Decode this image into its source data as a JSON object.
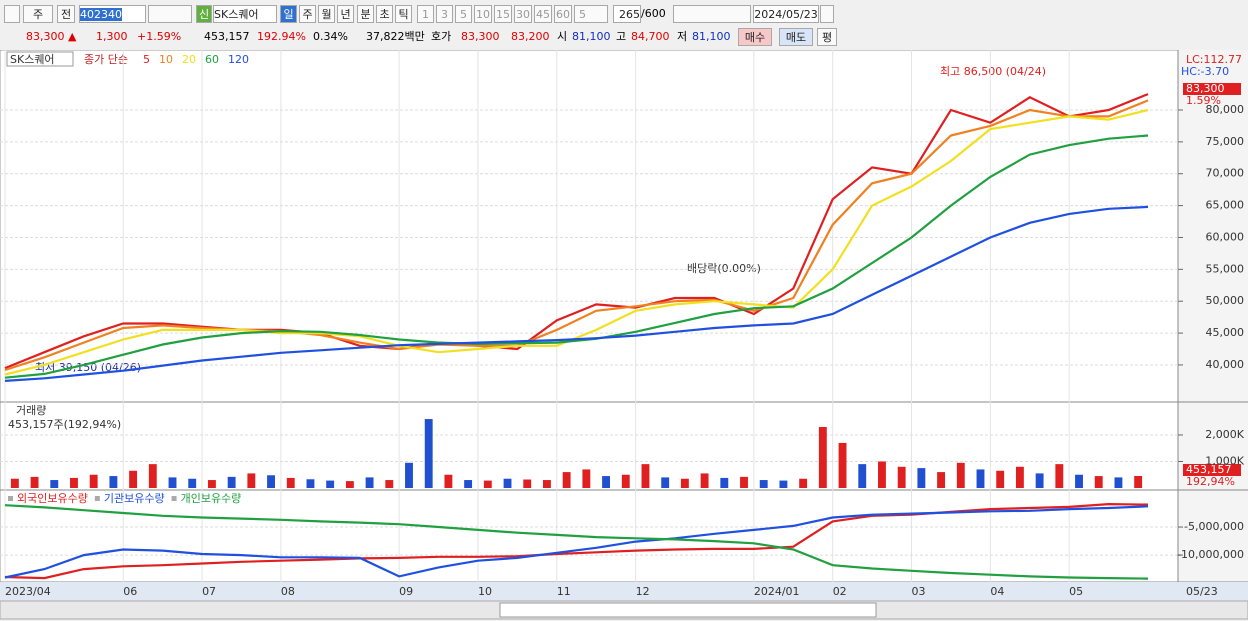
{
  "toolbar": {
    "period_type": "주",
    "compare": "전",
    "code": "402340",
    "new_badge": "신",
    "name": "SK스퀘어",
    "intervals": [
      "일",
      "주",
      "월",
      "년",
      "분",
      "초",
      "틱"
    ],
    "units": [
      "1",
      "3",
      "5",
      "10",
      "15",
      "30",
      "45",
      "60"
    ],
    "unit_select": "5",
    "count": "265",
    "count_max": "/600",
    "date": "2024/05/23"
  },
  "quote_bar": {
    "price": "83,300 ▲",
    "change": "1,300",
    "change_rate": "+1.59%",
    "volume": "453,157",
    "volume_rate": "192.94%",
    "turnover": "0.34%",
    "amount": "37,822백만",
    "ask_label": "호가",
    "ask": "83,300",
    "bid": "83,200",
    "open_label": "시",
    "open": "81,100",
    "high_label": "고",
    "high": "84,700",
    "low_label": "저",
    "low": "81,100",
    "buy": "매수",
    "sell": "매도",
    "avg": "평"
  },
  "chart_data": [
    {
      "type": "line",
      "name_label": "SK스퀘어",
      "legend_prefix": "종가 단순",
      "series": [
        {
          "name": "5",
          "color": "#e02020",
          "values": [
            39500,
            42000,
            44500,
            46500,
            46500,
            46000,
            45500,
            45500,
            45000,
            43000,
            42500,
            43500,
            43000,
            42500,
            47000,
            49500,
            49000,
            50500,
            50500,
            48000,
            52000,
            66000,
            71000,
            70000,
            80000,
            78000,
            82000,
            79000,
            80000,
            82500
          ]
        },
        {
          "name": "10",
          "color": "#f08020",
          "values": [
            39200,
            41200,
            43500,
            45800,
            46200,
            45800,
            45500,
            45300,
            44700,
            43500,
            42500,
            43200,
            43000,
            43000,
            45500,
            48500,
            49200,
            50000,
            50200,
            48500,
            50500,
            62000,
            68500,
            70000,
            76000,
            77500,
            80000,
            79000,
            79000,
            81500
          ]
        },
        {
          "name": "20",
          "color": "#f0e020",
          "values": [
            38500,
            40000,
            42000,
            44000,
            45500,
            45500,
            45500,
            45000,
            45000,
            44500,
            43000,
            42000,
            42500,
            43000,
            43000,
            45500,
            48500,
            49500,
            50000,
            49500,
            49000,
            55000,
            65000,
            68000,
            72000,
            77000,
            78000,
            79000,
            78500,
            80000
          ]
        },
        {
          "name": "60",
          "color": "#20a040",
          "values": [
            38000,
            38600,
            40000,
            41600,
            43200,
            44300,
            45000,
            45300,
            45200,
            44700,
            44000,
            43500,
            43300,
            43400,
            43500,
            44100,
            45200,
            46600,
            48000,
            48900,
            49200,
            52000,
            56000,
            60000,
            65000,
            69500,
            73000,
            74500,
            75500,
            76000
          ]
        },
        {
          "name": "120",
          "color": "#2050e0",
          "values": [
            37500,
            37900,
            38500,
            39100,
            39900,
            40700,
            41300,
            41900,
            42300,
            42700,
            43100,
            43300,
            43500,
            43700,
            43900,
            44200,
            44600,
            45200,
            45800,
            46200,
            46500,
            48000,
            51000,
            54000,
            57000,
            60000,
            62300,
            63700,
            64500,
            64800
          ]
        }
      ],
      "ylim": [
        34500,
        89100
      ],
      "yticks": [
        {
          "value": 40000,
          "label": "40,000"
        },
        {
          "value": 45000,
          "label": "45,000"
        },
        {
          "value": 50000,
          "label": "50,000"
        },
        {
          "value": 55000,
          "label": "55,000"
        },
        {
          "value": 60000,
          "label": "60,000"
        },
        {
          "value": 65000,
          "label": "65,000"
        },
        {
          "value": 70000,
          "label": "70,000"
        },
        {
          "value": 75000,
          "label": "75,000"
        },
        {
          "value": 80000,
          "label": "80,000"
        }
      ],
      "grid": true,
      "annotations": [
        "최고 86,500 (04/24)",
        "최저 39,150 (04/26)",
        "배당락(0.00%)"
      ],
      "right_labels": [
        "LC:112.77",
        "HC:-3.70",
        "83,300",
        "1.59%"
      ]
    },
    {
      "type": "bar",
      "title": "거래량",
      "subtitle": "453,157주(192,94%)",
      "values": [
        350000,
        420000,
        300000,
        380000,
        500000,
        450000,
        650000,
        900000,
        400000,
        350000,
        300000,
        420000,
        550000,
        480000,
        380000,
        330000,
        280000,
        260000,
        400000,
        300000,
        950000,
        2600000,
        500000,
        300000,
        280000,
        350000,
        320000,
        300000,
        600000,
        700000,
        450000,
        500000,
        900000,
        400000,
        350000,
        550000,
        380000,
        420000,
        300000,
        280000,
        350000,
        2300000,
        1700000,
        900000,
        1000000,
        800000,
        750000,
        600000,
        950000,
        700000,
        650000,
        800000,
        550000,
        900000,
        500000,
        450000,
        400000,
        453157
      ],
      "colors": [
        "#e02020",
        "#e02020",
        "#2050d0",
        "#e02020",
        "#e02020",
        "#2050d0",
        "#e02020",
        "#e02020",
        "#2050d0",
        "#2050d0",
        "#e02020",
        "#2050d0",
        "#e02020",
        "#2050d0",
        "#e02020",
        "#2050d0",
        "#2050d0",
        "#e02020",
        "#2050d0",
        "#e02020",
        "#2050d0",
        "#2050d0",
        "#e02020",
        "#2050d0",
        "#e02020",
        "#2050d0",
        "#e02020",
        "#e02020",
        "#e02020",
        "#e02020",
        "#2050d0",
        "#e02020",
        "#e02020",
        "#2050d0",
        "#e02020",
        "#e02020",
        "#2050d0",
        "#e02020",
        "#2050d0",
        "#2050d0",
        "#e02020",
        "#e02020",
        "#e02020",
        "#2050d0",
        "#e02020",
        "#e02020",
        "#2050d0",
        "#e02020",
        "#e02020",
        "#2050d0",
        "#e02020",
        "#e02020",
        "#2050d0",
        "#e02020",
        "#2050d0",
        "#e02020",
        "#2050d0",
        "#e02020"
      ],
      "ylim": [
        0,
        3130000
      ],
      "yticks": [
        {
          "value": 1000000,
          "label": "1,000K"
        },
        {
          "value": 2000000,
          "label": "2,000K"
        }
      ],
      "right_labels": [
        "453,157",
        "192,94%"
      ]
    },
    {
      "type": "line",
      "categories": [
        "2023/04",
        null,
        null,
        "06",
        null,
        "07",
        null,
        "08",
        null,
        null,
        "09",
        null,
        "10",
        null,
        "11",
        null,
        "12",
        null,
        null,
        "2024/01",
        null,
        "02",
        null,
        "03",
        null,
        "04",
        null,
        "05",
        null,
        null
      ],
      "series": [
        {
          "name": "외국인보유수량",
          "color": "#e02020",
          "values": [
            -13900000,
            -14100000,
            -12500000,
            -12000000,
            -11800000,
            -11500000,
            -11200000,
            -11000000,
            -10800000,
            -10600000,
            -10500000,
            -10300000,
            -10300000,
            -10200000,
            -9800000,
            -9500000,
            -9200000,
            -9000000,
            -8900000,
            -8900000,
            -8500000,
            -4000000,
            -3000000,
            -2800000,
            -2300000,
            -1800000,
            -1600000,
            -1400000,
            -900000,
            -1000000
          ]
        },
        {
          "name": "기관보유수량",
          "color": "#2050e0",
          "values": [
            -14000000,
            -12500000,
            -10000000,
            -9000000,
            -9200000,
            -9800000,
            -10000000,
            -10400000,
            -10400000,
            -10500000,
            -13800000,
            -12200000,
            -11000000,
            -10500000,
            -9600000,
            -8700000,
            -7600000,
            -7000000,
            -6200000,
            -5500000,
            -4800000,
            -3300000,
            -2800000,
            -2600000,
            -2400000,
            -2200000,
            -2100000,
            -1800000,
            -1600000,
            -1300000
          ]
        },
        {
          "name": "개인보유수량",
          "color": "#20a040",
          "values": [
            -1100000,
            -1500000,
            -2000000,
            -2500000,
            -3000000,
            -3300000,
            -3500000,
            -3700000,
            -4000000,
            -4200000,
            -4500000,
            -5000000,
            -5500000,
            -6000000,
            -6400000,
            -6800000,
            -7000000,
            -7200000,
            -7500000,
            -7900000,
            -9000000,
            -11800000,
            -12400000,
            -12800000,
            -13200000,
            -13500000,
            -13800000,
            -14000000,
            -14100000,
            -14200000
          ]
        }
      ],
      "ylim": [
        -14800000,
        1250000
      ],
      "yticks": [
        {
          "value": -5000000,
          "label": "-5,000,000"
        },
        {
          "value": -10000000,
          "label": "-10,000,000"
        }
      ]
    }
  ],
  "x_end_label": "05/23"
}
